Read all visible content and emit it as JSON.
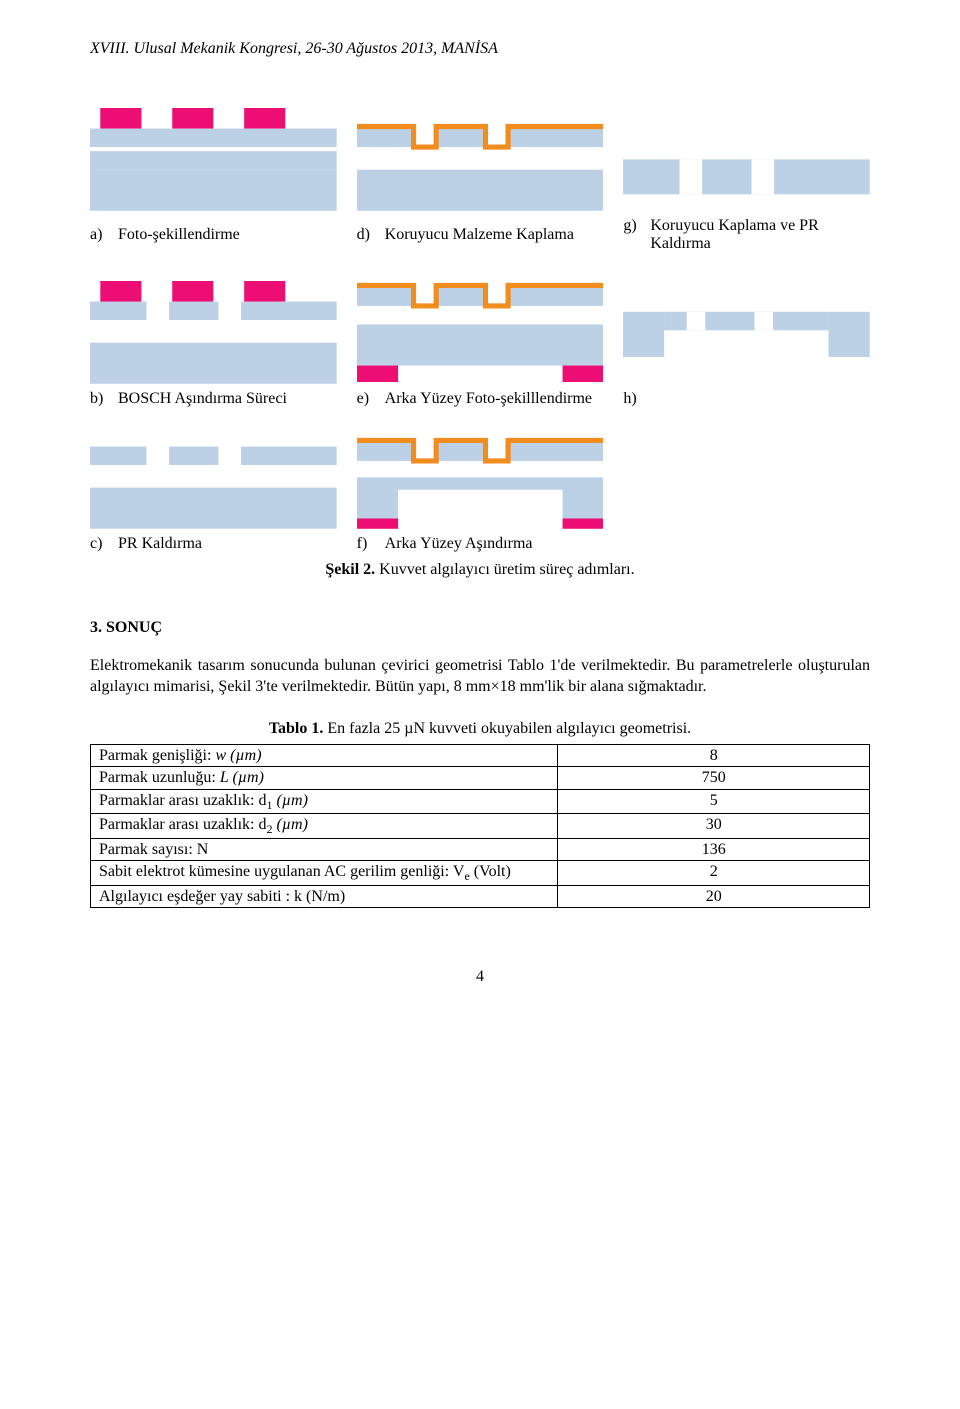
{
  "header": "XVIII. Ulusal Mekanik Kongresi, 26-30 Ağustos 2013, MANİSA",
  "figure": {
    "colors": {
      "pr": "#ec0e72",
      "si": "#bcd1e6",
      "metal": "#f18c1f",
      "air": "#ffffff",
      "outline": "#808080"
    },
    "labels": {
      "a": "a)",
      "b": "b)",
      "c": "c)",
      "d": "d)",
      "e": "e)",
      "f": "f)",
      "g": "g)",
      "h": "h)"
    },
    "captions": {
      "a": "Foto-şekillendirme",
      "b": "BOSCH Aşındırma Süreci",
      "c": "PR Kaldırma",
      "d": "Koruyucu Malzeme Kaplama",
      "e": "Arka Yüzey Foto-şekilllendirme",
      "f": "Arka Yüzey Aşındırma",
      "g": "Koruyucu Kaplama ve PR Kaldırma",
      "h": ""
    },
    "main_caption_prefix": "Şekil 2. ",
    "main_caption": "Kuvvet algılayıcı üretim süreç adımları."
  },
  "section": {
    "heading": "3.   SONUÇ"
  },
  "paragraph": "Elektromekanik tasarım sonucunda bulunan çevirici geometrisi Tablo 1'de verilmektedir. Bu parametrelerle oluşturulan algılayıcı mimarisi, Şekil 3'te verilmektedir. Bütün yapı, 8 mm×18 mm'lik bir alana sığmaktadır.",
  "table": {
    "caption_prefix": "Tablo 1. ",
    "caption": "En fazla 25 µN kuvveti okuyabilen algılayıcı geometrisi.",
    "rows": [
      {
        "param_html": "Parmak genişliği: <i>w (µm)</i>",
        "value": "8"
      },
      {
        "param_html": "Parmak uzunluğu: <i>L (µm)</i>",
        "value": "750"
      },
      {
        "param_html": "Parmaklar arası uzaklık: d<sub>1</sub> <i>(µm)</i>",
        "value": "5"
      },
      {
        "param_html": "Parmaklar arası uzaklık: d<sub>2</sub> <i>(µm)</i>",
        "value": "30"
      },
      {
        "param_html": "Parmak sayısı: N",
        "value": "136"
      },
      {
        "param_html": "Sabit elektrot kümesine uygulanan AC gerilim genliği: V<sub>e</sub> (Volt)",
        "value": "2"
      },
      {
        "param_html": "Algılayıcı eşdeğer yay sabiti : k (N/m)",
        "value": "20"
      }
    ]
  },
  "pagenum": "4"
}
